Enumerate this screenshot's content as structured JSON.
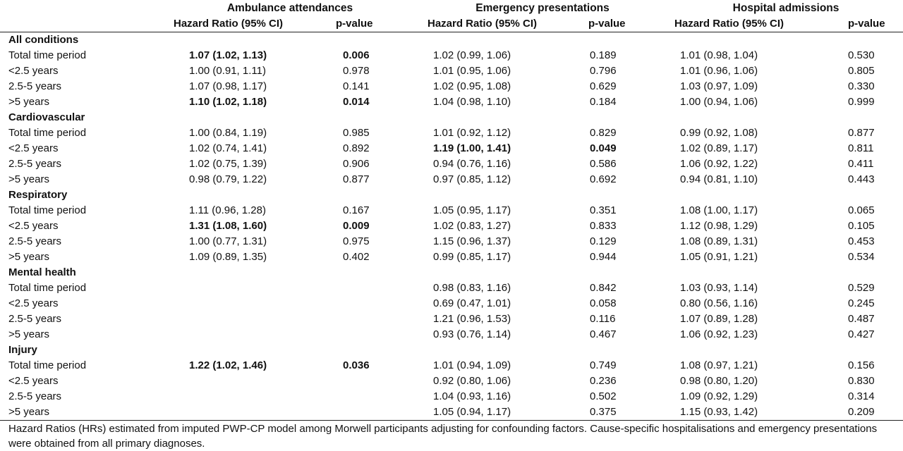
{
  "groups": [
    "Ambulance attendances",
    "Emergency presentations",
    "Hospital admissions"
  ],
  "subheaders": {
    "hr": "Hazard Ratio (95% CI)",
    "p": "p-value"
  },
  "sections": [
    {
      "title": "All conditions",
      "rows": [
        {
          "label": "Total time period",
          "amb_hr": "1.07 (1.02, 1.13)",
          "amb_p": "0.006",
          "amb_bold": true,
          "em_hr": "1.02 (0.99, 1.06)",
          "em_p": "0.189",
          "em_bold": false,
          "hosp_hr": "1.01 (0.98, 1.04)",
          "hosp_p": "0.530",
          "hosp_bold": false
        },
        {
          "label": "<2.5 years",
          "amb_hr": "1.00 (0.91, 1.11)",
          "amb_p": "0.978",
          "amb_bold": false,
          "em_hr": "1.01 (0.95, 1.06)",
          "em_p": "0.796",
          "em_bold": false,
          "hosp_hr": "1.01 (0.96, 1.06)",
          "hosp_p": "0.805",
          "hosp_bold": false
        },
        {
          "label": "2.5-5 years",
          "amb_hr": "1.07 (0.98, 1.17)",
          "amb_p": "0.141",
          "amb_bold": false,
          "em_hr": "1.02 (0.95, 1.08)",
          "em_p": "0.629",
          "em_bold": false,
          "hosp_hr": "1.03 (0.97, 1.09)",
          "hosp_p": "0.330",
          "hosp_bold": false
        },
        {
          "label": ">5 years",
          "amb_hr": "1.10 (1.02, 1.18)",
          "amb_p": "0.014",
          "amb_bold": true,
          "em_hr": "1.04 (0.98, 1.10)",
          "em_p": "0.184",
          "em_bold": false,
          "hosp_hr": "1.00 (0.94, 1.06)",
          "hosp_p": "0.999",
          "hosp_bold": false
        }
      ]
    },
    {
      "title": "Cardiovascular",
      "rows": [
        {
          "label": "Total time period",
          "amb_hr": "1.00 (0.84, 1.19)",
          "amb_p": "0.985",
          "amb_bold": false,
          "em_hr": "1.01 (0.92, 1.12)",
          "em_p": "0.829",
          "em_bold": false,
          "hosp_hr": "0.99 (0.92, 1.08)",
          "hosp_p": "0.877",
          "hosp_bold": false
        },
        {
          "label": "<2.5 years",
          "amb_hr": "1.02 (0.74, 1.41)",
          "amb_p": "0.892",
          "amb_bold": false,
          "em_hr": "1.19 (1.00, 1.41)",
          "em_p": "0.049",
          "em_bold": true,
          "hosp_hr": "1.02 (0.89, 1.17)",
          "hosp_p": "0.811",
          "hosp_bold": false
        },
        {
          "label": "2.5-5 years",
          "amb_hr": "1.02 (0.75, 1.39)",
          "amb_p": "0.906",
          "amb_bold": false,
          "em_hr": "0.94 (0.76, 1.16)",
          "em_p": "0.586",
          "em_bold": false,
          "hosp_hr": "1.06 (0.92, 1.22)",
          "hosp_p": "0.411",
          "hosp_bold": false
        },
        {
          "label": ">5 years",
          "amb_hr": "0.98 (0.79, 1.22)",
          "amb_p": "0.877",
          "amb_bold": false,
          "em_hr": "0.97 (0.85, 1.12)",
          "em_p": "0.692",
          "em_bold": false,
          "hosp_hr": "0.94 (0.81, 1.10)",
          "hosp_p": "0.443",
          "hosp_bold": false
        }
      ]
    },
    {
      "title": "Respiratory",
      "rows": [
        {
          "label": "Total time period",
          "amb_hr": "1.11 (0.96, 1.28)",
          "amb_p": "0.167",
          "amb_bold": false,
          "em_hr": "1.05 (0.95, 1.17)",
          "em_p": "0.351",
          "em_bold": false,
          "hosp_hr": "1.08 (1.00, 1.17)",
          "hosp_p": "0.065",
          "hosp_bold": false
        },
        {
          "label": "<2.5 years",
          "amb_hr": "1.31 (1.08, 1.60)",
          "amb_p": "0.009",
          "amb_bold": true,
          "em_hr": "1.02 (0.83, 1.27)",
          "em_p": "0.833",
          "em_bold": false,
          "hosp_hr": "1.12 (0.98, 1.29)",
          "hosp_p": "0.105",
          "hosp_bold": false
        },
        {
          "label": "2.5-5 years",
          "amb_hr": "1.00 (0.77, 1.31)",
          "amb_p": "0.975",
          "amb_bold": false,
          "em_hr": "1.15 (0.96, 1.37)",
          "em_p": "0.129",
          "em_bold": false,
          "hosp_hr": "1.08 (0.89, 1.31)",
          "hosp_p": "0.453",
          "hosp_bold": false
        },
        {
          "label": ">5 years",
          "amb_hr": "1.09 (0.89, 1.35)",
          "amb_p": "0.402",
          "amb_bold": false,
          "em_hr": "0.99 (0.85, 1.17)",
          "em_p": "0.944",
          "em_bold": false,
          "hosp_hr": "1.05 (0.91, 1.21)",
          "hosp_p": "0.534",
          "hosp_bold": false
        }
      ]
    },
    {
      "title": "Mental health",
      "rows": [
        {
          "label": "Total time period",
          "amb_hr": "",
          "amb_p": "",
          "amb_bold": false,
          "em_hr": "0.98 (0.83, 1.16)",
          "em_p": "0.842",
          "em_bold": false,
          "hosp_hr": "1.03 (0.93, 1.14)",
          "hosp_p": "0.529",
          "hosp_bold": false
        },
        {
          "label": "<2.5 years",
          "amb_hr": "",
          "amb_p": "",
          "amb_bold": false,
          "em_hr": "0.69 (0.47, 1.01)",
          "em_p": "0.058",
          "em_bold": false,
          "hosp_hr": "0.80 (0.56, 1.16)",
          "hosp_p": "0.245",
          "hosp_bold": false
        },
        {
          "label": "2.5-5 years",
          "amb_hr": "",
          "amb_p": "",
          "amb_bold": false,
          "em_hr": "1.21 (0.96, 1.53)",
          "em_p": "0.116",
          "em_bold": false,
          "hosp_hr": "1.07 (0.89, 1.28)",
          "hosp_p": "0.487",
          "hosp_bold": false
        },
        {
          "label": ">5 years",
          "amb_hr": "",
          "amb_p": "",
          "amb_bold": false,
          "em_hr": "0.93 (0.76, 1.14)",
          "em_p": "0.467",
          "em_bold": false,
          "hosp_hr": "1.06 (0.92, 1.23)",
          "hosp_p": "0.427",
          "hosp_bold": false
        }
      ]
    },
    {
      "title": "Injury",
      "rows": [
        {
          "label": "Total time period",
          "amb_hr": "1.22 (1.02, 1.46)",
          "amb_p": "0.036",
          "amb_bold": true,
          "em_hr": "1.01 (0.94, 1.09)",
          "em_p": "0.749",
          "em_bold": false,
          "hosp_hr": "1.08 (0.97, 1.21)",
          "hosp_p": "0.156",
          "hosp_bold": false
        },
        {
          "label": "<2.5 years",
          "amb_hr": "",
          "amb_p": "",
          "amb_bold": false,
          "em_hr": "0.92 (0.80, 1.06)",
          "em_p": "0.236",
          "em_bold": false,
          "hosp_hr": "0.98 (0.80, 1.20)",
          "hosp_p": "0.830",
          "hosp_bold": false
        },
        {
          "label": "2.5-5 years",
          "amb_hr": "",
          "amb_p": "",
          "amb_bold": false,
          "em_hr": "1.04 (0.93, 1.16)",
          "em_p": "0.502",
          "em_bold": false,
          "hosp_hr": "1.09 (0.92, 1.29)",
          "hosp_p": "0.314",
          "hosp_bold": false
        },
        {
          "label": ">5 years",
          "amb_hr": "",
          "amb_p": "",
          "amb_bold": false,
          "em_hr": "1.05 (0.94, 1.17)",
          "em_p": "0.375",
          "em_bold": false,
          "hosp_hr": "1.15 (0.93, 1.42)",
          "hosp_p": "0.209",
          "hosp_bold": false
        }
      ]
    }
  ],
  "footnote": "Hazard Ratios (HRs) estimated from imputed PWP-CP model among Morwell participants adjusting for confounding factors. Cause-specific hospitalisations and emergency presentations were obtained from all primary diagnoses."
}
